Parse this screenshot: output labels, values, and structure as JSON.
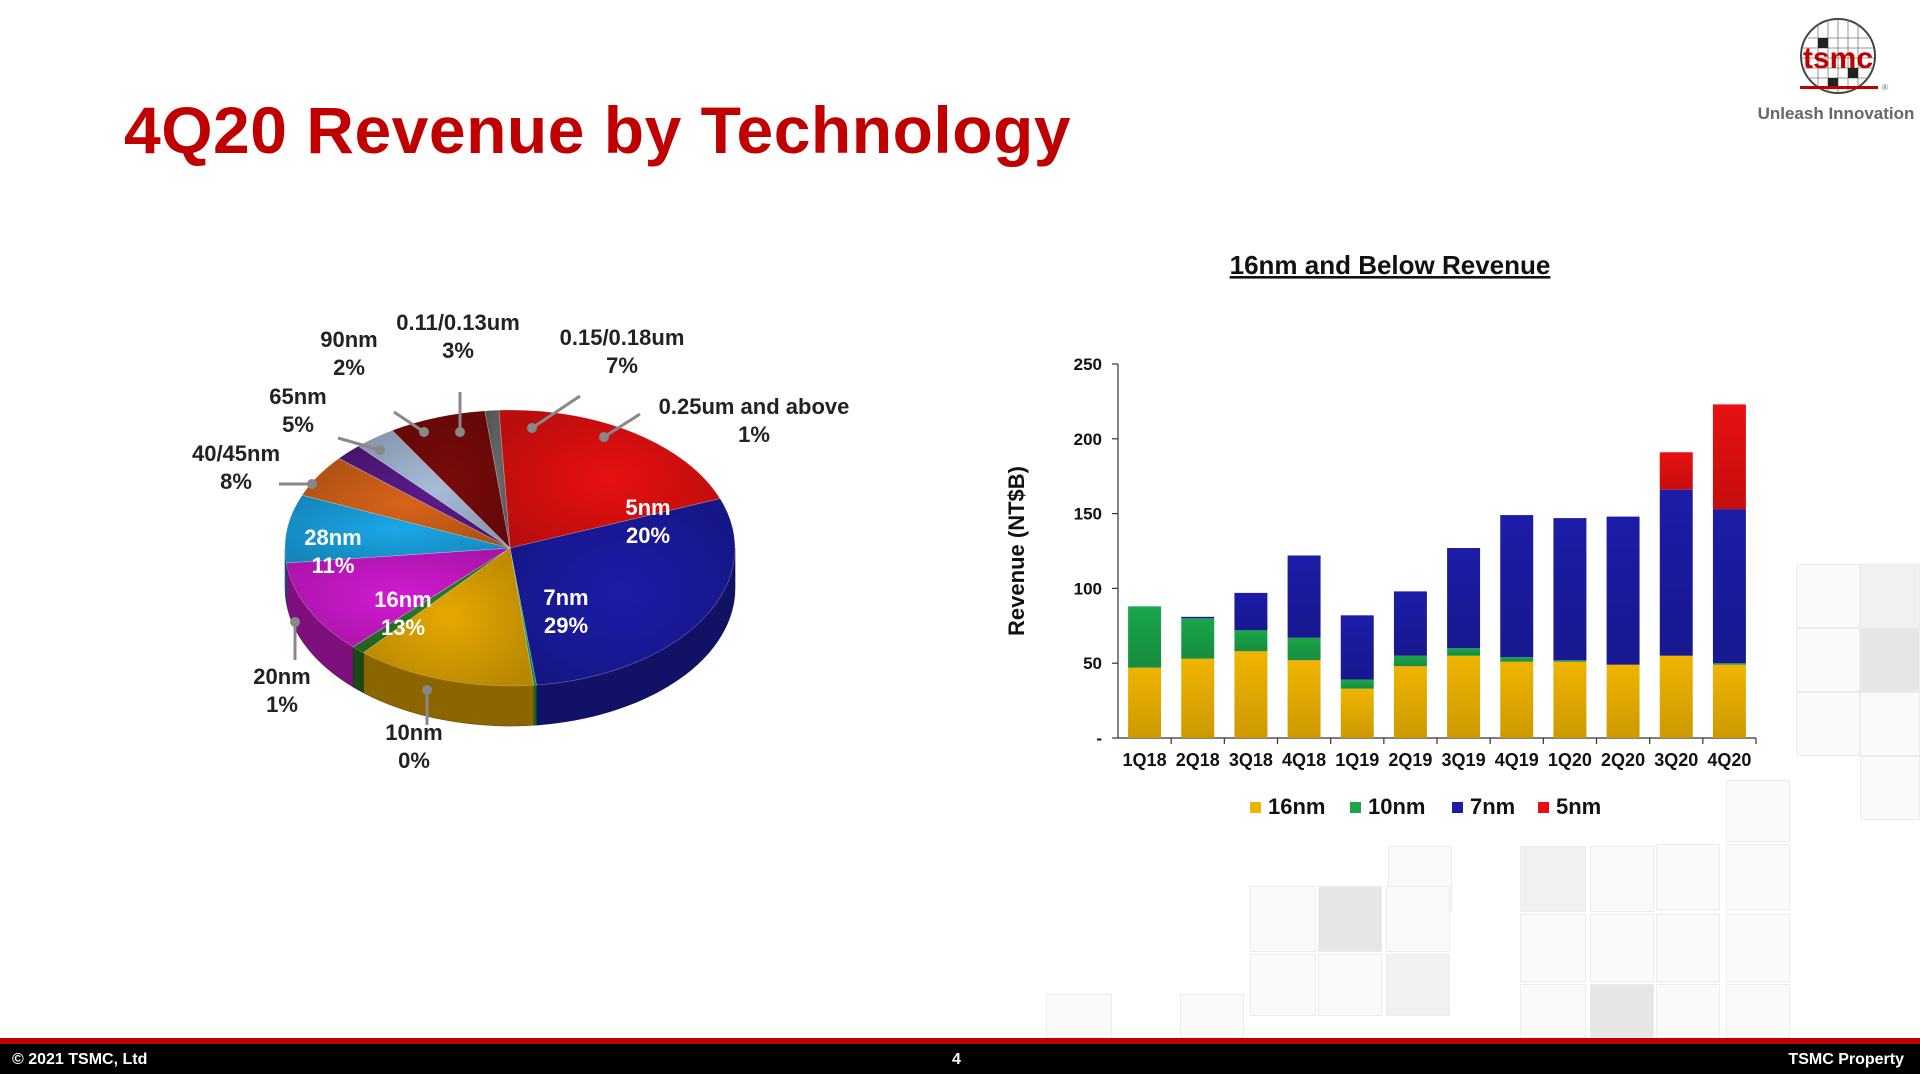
{
  "slide": {
    "title": "4Q20 Revenue by Technology"
  },
  "logo": {
    "text": "tsmc",
    "tagline": "Unleash Innovation",
    "reg": "®"
  },
  "colors": {
    "brand": "#c00000",
    "n16": "#f0b400",
    "n10": "#1aa64a",
    "n7": "#1c1ca8",
    "n5": "#e81010"
  },
  "chart_data": [
    {
      "type": "pie",
      "title": "4Q20 Revenue by Technology",
      "slices": [
        {
          "label": "5nm",
          "value": 20,
          "pct": "20%",
          "color": "#e81010"
        },
        {
          "label": "7nm",
          "value": 29,
          "pct": "29%",
          "color": "#1c1ca8"
        },
        {
          "label": "10nm",
          "value": 0.2,
          "pct": "0%",
          "color": "#1aa64a"
        },
        {
          "label": "16nm",
          "value": 13,
          "pct": "13%",
          "color": "#e6a800"
        },
        {
          "label": "20nm",
          "value": 1,
          "pct": "1%",
          "color": "#2a7a2a"
        },
        {
          "label": "28nm",
          "value": 11,
          "pct": "11%",
          "color": "#d21ad2"
        },
        {
          "label": "40/45nm",
          "value": 8,
          "pct": "8%",
          "color": "#1aa8e8"
        },
        {
          "label": "65nm",
          "value": 5,
          "pct": "5%",
          "color": "#d8641a"
        },
        {
          "label": "90nm",
          "value": 2,
          "pct": "2%",
          "color": "#5a1a8a"
        },
        {
          "label": "0.11/0.13um",
          "value": 3,
          "pct": "3%",
          "color": "#a8bcd8"
        },
        {
          "label": "0.15/0.18um",
          "value": 7,
          "pct": "7%",
          "color": "#7a0a0a"
        },
        {
          "label": "0.25um and above",
          "value": 1,
          "pct": "1%",
          "color": "#6a6a6a"
        }
      ]
    },
    {
      "type": "bar",
      "stacked": true,
      "title": "16nm and Below Revenue",
      "ylabel": "Revenue (NT$B)",
      "xlabel": "",
      "ylim": [
        0,
        250
      ],
      "yticks": [
        0,
        50,
        100,
        150,
        200,
        250
      ],
      "ytick_labels": [
        "-",
        "50",
        "100",
        "150",
        "200",
        "250"
      ],
      "categories": [
        "1Q18",
        "2Q18",
        "3Q18",
        "4Q18",
        "1Q19",
        "2Q19",
        "3Q19",
        "4Q19",
        "1Q20",
        "2Q20",
        "3Q20",
        "4Q20"
      ],
      "series": [
        {
          "name": "16nm",
          "color": "#f0b400",
          "values": [
            47,
            53,
            58,
            52,
            33,
            48,
            55,
            51,
            51,
            49,
            55,
            49
          ]
        },
        {
          "name": "10nm",
          "color": "#1aa64a",
          "values": [
            41,
            27,
            14,
            15,
            6,
            7,
            5,
            3,
            1,
            0,
            0,
            1
          ]
        },
        {
          "name": "7nm",
          "color": "#1c1ca8",
          "values": [
            0,
            1,
            25,
            55,
            43,
            43,
            67,
            95,
            95,
            99,
            111,
            103
          ]
        },
        {
          "name": "5nm",
          "color": "#e81010",
          "values": [
            0,
            0,
            0,
            0,
            0,
            0,
            0,
            0,
            0,
            0,
            25,
            70
          ]
        }
      ],
      "legend": "bottom"
    }
  ],
  "footer": {
    "copyright": "©  2021 TSMC, Ltd",
    "page": "4",
    "property": "TSMC Property"
  }
}
